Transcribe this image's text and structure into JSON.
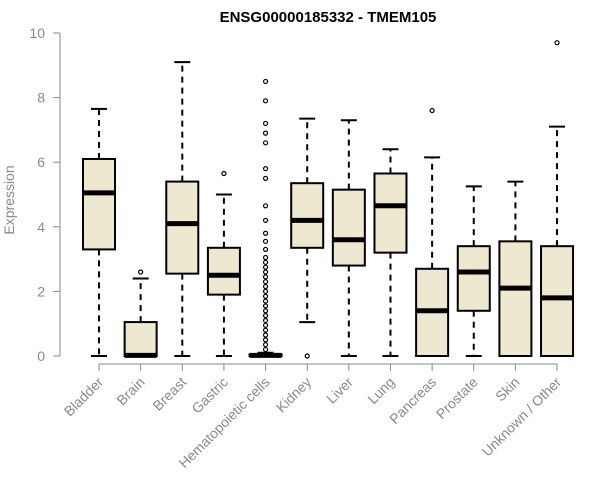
{
  "chart_data": {
    "type": "box",
    "title": "ENSG00000185332 - TMEM105",
    "ylabel": "Expression",
    "xlabel": "",
    "ylim": [
      0,
      10
    ],
    "yticks": [
      0,
      2,
      4,
      6,
      8,
      10
    ],
    "box_fill": "#efe8d0",
    "categories": [
      "Bladder",
      "Brain",
      "Breast",
      "Gastric",
      "Hematopoietic cells",
      "Kidney",
      "Liver",
      "Lung",
      "Pancreas",
      "Prostate",
      "Skin",
      "Unknown / Other"
    ],
    "boxes": [
      {
        "min": 0,
        "q1": 3.3,
        "median": 5.05,
        "q3": 6.1,
        "max": 7.65,
        "outliers": []
      },
      {
        "min": 0,
        "q1": 0,
        "median": 0.02,
        "q3": 1.05,
        "max": 2.4,
        "outliers": [
          2.6
        ]
      },
      {
        "min": 0,
        "q1": 2.55,
        "median": 4.1,
        "q3": 5.4,
        "max": 9.1,
        "outliers": []
      },
      {
        "min": 0,
        "q1": 1.9,
        "median": 2.5,
        "q3": 3.35,
        "max": 5.0,
        "outliers": [
          5.65
        ]
      },
      {
        "min": 0,
        "q1": 0,
        "median": 0.02,
        "q3": 0.05,
        "max": 0.1,
        "outliers": [
          0.2,
          0.35,
          0.5,
          0.65,
          0.8,
          0.95,
          1.1,
          1.25,
          1.4,
          1.55,
          1.7,
          1.85,
          2.0,
          2.15,
          2.3,
          2.45,
          2.6,
          2.75,
          2.9,
          3.05,
          3.3,
          3.55,
          3.8,
          4.2,
          4.65,
          5.5,
          5.8,
          6.6,
          6.9,
          7.2,
          7.9,
          8.5
        ]
      },
      {
        "min": 1.05,
        "q1": 3.35,
        "median": 4.2,
        "q3": 5.35,
        "max": 7.35,
        "outliers": [
          0
        ]
      },
      {
        "min": 0,
        "q1": 2.8,
        "median": 3.6,
        "q3": 5.15,
        "max": 7.3,
        "outliers": []
      },
      {
        "min": 0,
        "q1": 3.2,
        "median": 4.65,
        "q3": 5.65,
        "max": 6.4,
        "outliers": []
      },
      {
        "min": 0,
        "q1": 0,
        "median": 1.4,
        "q3": 2.7,
        "max": 6.15,
        "outliers": [
          7.6
        ]
      },
      {
        "min": 0,
        "q1": 1.4,
        "median": 2.6,
        "q3": 3.4,
        "max": 5.25,
        "outliers": []
      },
      {
        "min": 0,
        "q1": 0,
        "median": 2.1,
        "q3": 3.55,
        "max": 5.4,
        "outliers": []
      },
      {
        "min": 0,
        "q1": 0,
        "median": 1.8,
        "q3": 3.4,
        "max": 7.1,
        "outliers": [
          9.7
        ]
      }
    ]
  }
}
